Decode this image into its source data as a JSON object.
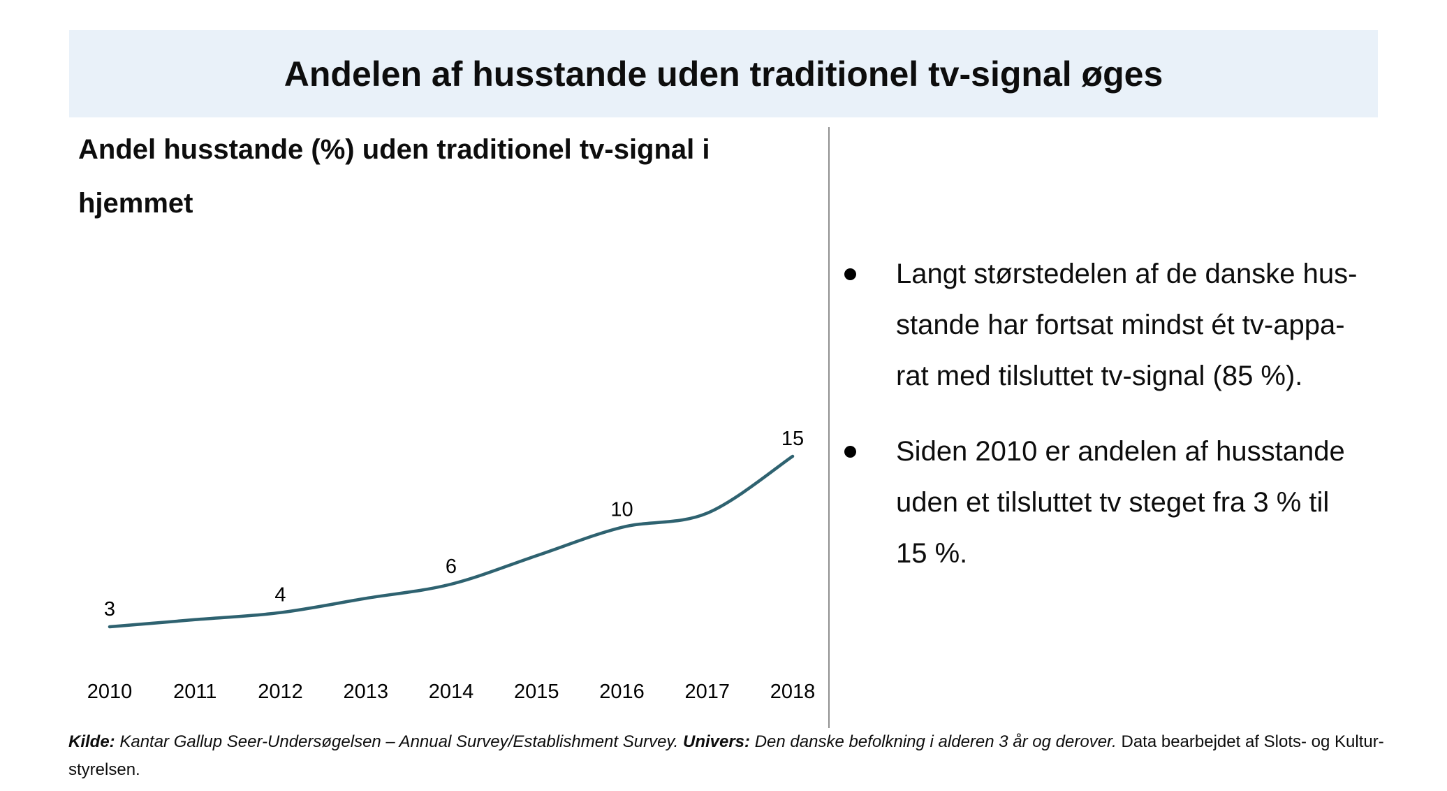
{
  "banner": {
    "title": "Andelen af husstande uden traditionel tv-signal øges"
  },
  "chart": {
    "title": "Andel husstande (%) uden traditionel tv-signal i\nhjemmet"
  },
  "chart_data": {
    "type": "line",
    "title": "Andel husstande (%) uden traditionel tv-signal i hjemmet",
    "xlabel": "",
    "ylabel": "",
    "x": [
      2010,
      2011,
      2012,
      2013,
      2014,
      2015,
      2016,
      2017,
      2018
    ],
    "values": [
      3,
      3.5,
      4,
      5,
      6,
      8,
      10,
      11,
      15
    ],
    "labeled_points": [
      {
        "year": 2010,
        "value": 3,
        "label": "3"
      },
      {
        "year": 2012,
        "value": 4,
        "label": "4"
      },
      {
        "year": 2014,
        "value": 6,
        "label": "6"
      },
      {
        "year": 2016,
        "value": 10,
        "label": "10"
      },
      {
        "year": 2018,
        "value": 15,
        "label": "15"
      }
    ],
    "ylim": [
      0,
      16
    ],
    "grid": false,
    "legend": false,
    "smooth": true,
    "line_color": "#2E6270",
    "label_color": "#000000",
    "axis_label_color": "#000000"
  },
  "bullets": [
    {
      "text": "Langt størstedelen af de danske hus-\nstande har fortsat mindst ét tv-appa-\nrat med tilsluttet tv-signal (85 %)."
    },
    {
      "text": "Siden 2010 er andelen af husstande\nuden et tilsluttet tv steget fra 3 % til\n15 %."
    }
  ],
  "footer": {
    "kilde_label": "Kilde:",
    "kilde_text": " Kantar Gallup Seer-Undersøgelsen – Annual Survey/Establishment Survey. ",
    "univers_label": "Univers:",
    "univers_text": " Den danske befolkning i alderen 3 år og derover. ",
    "processed_text_line1": "Data bearbejdet af Slots- og Kultur-",
    "processed_text_line2": "styrelsen."
  },
  "colors": {
    "banner_bg": "#E9F1F9",
    "divider": "#8F8F8F",
    "line": "#2E6270",
    "text": "#0D0D0D"
  }
}
